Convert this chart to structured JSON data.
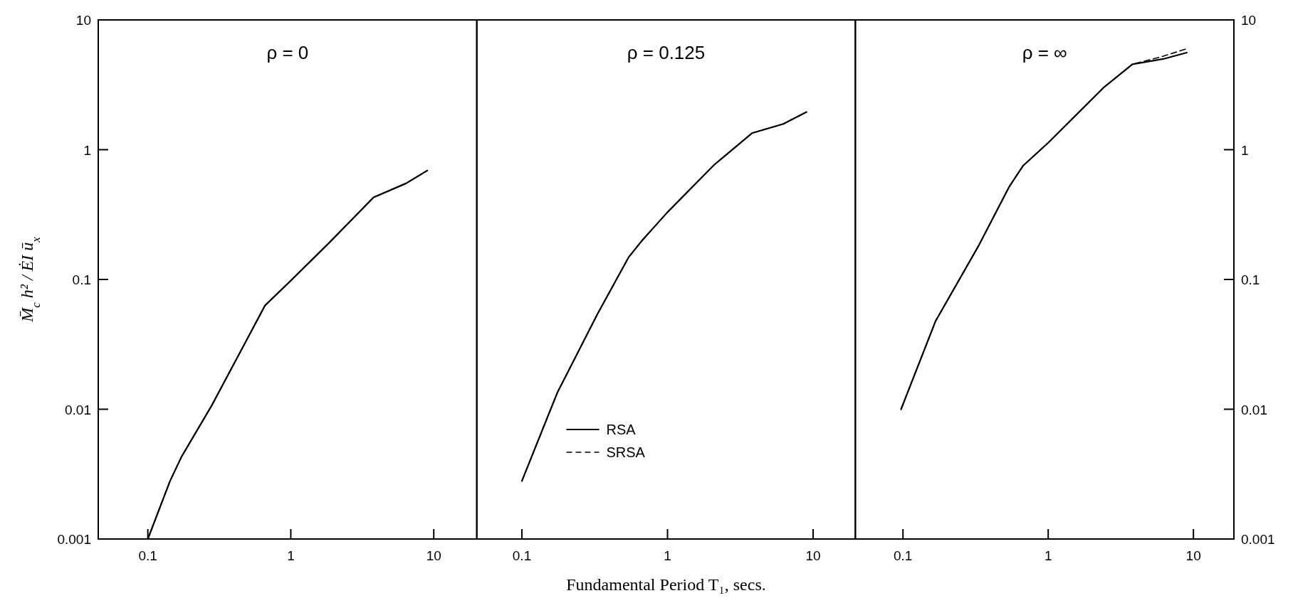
{
  "chart_data": [
    {
      "type": "line",
      "title": "ρ = 0",
      "ylabel": "M̄$_{c}$ h² / ĖI ū$_{x}$",
      "xlim": [
        0.045,
        20
      ],
      "xticks": [
        0.1,
        1,
        10
      ],
      "ylim": [
        0.001,
        10
      ],
      "yticks": [
        0.001,
        0.01,
        0.1,
        1,
        10
      ],
      "log": "xy",
      "grid": false,
      "marker": "none",
      "series": [
        {
          "color": "#000000",
          "line_style": "solid",
          "x": [
            0.1,
            0.143,
            0.172,
            0.28,
            0.49,
            0.66,
            1.0,
            1.84,
            3.8,
            6.4,
            9.0
          ],
          "values": [
            0.001,
            0.0028,
            0.0043,
            0.0107,
            0.034,
            0.063,
            0.098,
            0.19,
            0.43,
            0.55,
            0.69
          ]
        },
        {
          "color": "#000000",
          "line_style": "dashed",
          "x": [
            0.1,
            0.143,
            0.172,
            0.28,
            0.49,
            0.66,
            1.0,
            1.84,
            3.8,
            6.4,
            9.0
          ],
          "values": [
            0.001,
            0.0028,
            0.0043,
            0.0107,
            0.034,
            0.063,
            0.098,
            0.19,
            0.43,
            0.55,
            0.69
          ]
        }
      ]
    },
    {
      "type": "line",
      "title": "ρ = 0.125",
      "xlabel": "Fundamental Period T₁, secs.",
      "xlim": [
        0.049,
        19.5
      ],
      "xticks": [
        0.1,
        1,
        10
      ],
      "ylim": [
        0.001,
        10
      ],
      "log": "xy",
      "grid": false,
      "marker": "none",
      "tick_labels": "x",
      "legend": "bottom",
      "series": [
        {
          "name": "RSA",
          "color": "#000000",
          "line_style": "solid",
          "x": [
            0.1,
            0.175,
            0.33,
            0.54,
            0.67,
            1.0,
            2.08,
            3.8,
            6.25,
            9.0
          ],
          "values": [
            0.0028,
            0.0134,
            0.054,
            0.148,
            0.2,
            0.33,
            0.76,
            1.34,
            1.58,
            1.95
          ]
        },
        {
          "name": "SRSA",
          "color": "#000000",
          "line_style": "dashed",
          "x": [
            0.1,
            0.175,
            0.33,
            0.54,
            0.67,
            1.0,
            2.08,
            3.8,
            6.25,
            9.0
          ],
          "values": [
            0.0028,
            0.0134,
            0.054,
            0.148,
            0.2,
            0.33,
            0.76,
            1.34,
            1.58,
            1.95
          ]
        }
      ]
    },
    {
      "type": "line",
      "title": "ρ = ∞",
      "xlim": [
        0.047,
        19
      ],
      "xticks": [
        0.1,
        1,
        10
      ],
      "ylim": [
        0.001,
        10
      ],
      "yticks": [
        0.001,
        0.01,
        0.1,
        1,
        10
      ],
      "log": "xy",
      "grid": false,
      "marker": "none",
      "series": [
        {
          "color": "#000000",
          "line_style": "solid",
          "x": [
            0.097,
            0.168,
            0.33,
            0.54,
            0.67,
            1.0,
            2.4,
            3.8,
            6.2,
            9.0
          ],
          "values": [
            0.01,
            0.048,
            0.18,
            0.52,
            0.75,
            1.13,
            3.0,
            4.55,
            5.0,
            5.6
          ]
        },
        {
          "color": "#000000",
          "line_style": "dashed",
          "x": [
            0.097,
            0.168,
            0.33,
            0.54,
            0.67,
            1.0,
            2.4,
            3.8,
            6.2,
            9.0
          ],
          "values": [
            0.01,
            0.048,
            0.18,
            0.52,
            0.75,
            1.13,
            3.0,
            4.55,
            5.25,
            6.0
          ]
        }
      ]
    }
  ]
}
